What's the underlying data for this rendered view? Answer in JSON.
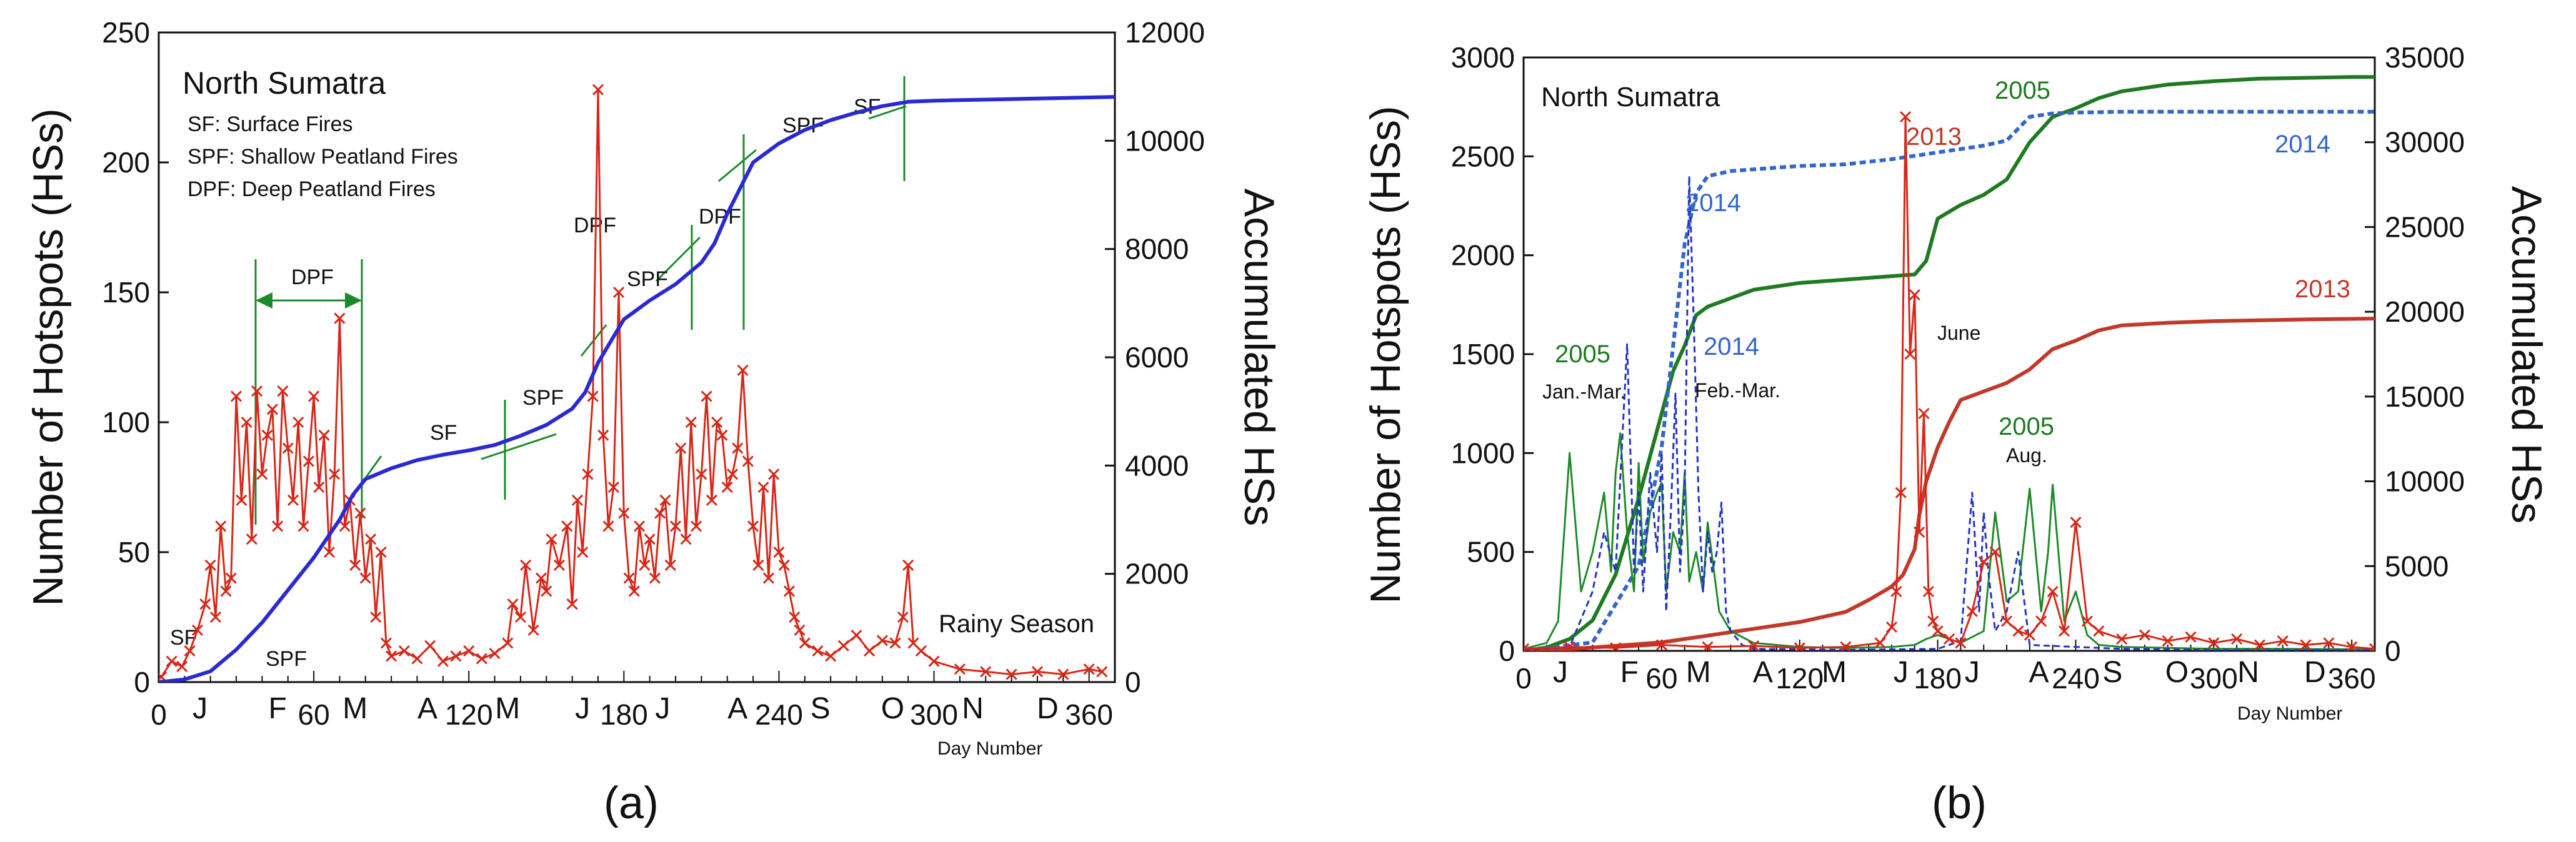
{
  "chart_data": [
    {
      "panel": "(a)",
      "type": "line",
      "title": "North Sumatra",
      "xlabel": "Day Number",
      "ylabel": "Number of Hotspots (HSs)",
      "y2label": "Accumulated HSs",
      "xlim": [
        0,
        370
      ],
      "ylim": [
        0,
        250
      ],
      "y2lim": [
        0,
        12000
      ],
      "xticks": [
        0,
        60,
        120,
        180,
        240,
        300,
        360
      ],
      "yticks": [
        0,
        50,
        100,
        150,
        200,
        250
      ],
      "y2ticks": [
        0,
        2000,
        4000,
        6000,
        8000,
        10000,
        12000
      ],
      "month_labels": [
        {
          "label": "J",
          "day": 16
        },
        {
          "label": "F",
          "day": 46
        },
        {
          "label": "M",
          "day": 76
        },
        {
          "label": "A",
          "day": 104
        },
        {
          "label": "M",
          "day": 135
        },
        {
          "label": "J",
          "day": 164
        },
        {
          "label": "J",
          "day": 195
        },
        {
          "label": "A",
          "day": 224
        },
        {
          "label": "S",
          "day": 256
        },
        {
          "label": "O",
          "day": 284
        },
        {
          "label": "N",
          "day": 315
        },
        {
          "label": "D",
          "day": 344
        }
      ],
      "legend": [
        "SF:  Surface Fires",
        "SPF: Shallow Peatland Fires",
        "DPF: Deep Peatland Fires"
      ],
      "annotations": [
        "Rainy Season",
        "DPF",
        "SF",
        "SPF",
        "SF",
        "SPF",
        "DPF",
        "SPF",
        "DPF",
        "SPF",
        "SF"
      ],
      "series": [
        {
          "name": "Daily hotspots",
          "axis": "left",
          "color": "#d62718",
          "marker": "x",
          "x": [
            1,
            5,
            9,
            12,
            15,
            18,
            20,
            22,
            24,
            26,
            28,
            30,
            32,
            34,
            36,
            38,
            40,
            42,
            44,
            46,
            48,
            50,
            52,
            54,
            56,
            58,
            60,
            62,
            64,
            66,
            68,
            70,
            72,
            74,
            76,
            78,
            80,
            82,
            84,
            86,
            88,
            90,
            95,
            100,
            105,
            110,
            115,
            120,
            125,
            130,
            135,
            137,
            140,
            142,
            145,
            148,
            150,
            152,
            155,
            158,
            160,
            162,
            164,
            166,
            168,
            170,
            172,
            174,
            176,
            178,
            180,
            182,
            184,
            186,
            188,
            190,
            192,
            194,
            196,
            198,
            200,
            202,
            204,
            206,
            208,
            210,
            212,
            214,
            216,
            218,
            220,
            222,
            224,
            226,
            228,
            230,
            232,
            234,
            236,
            238,
            240,
            242,
            244,
            246,
            248,
            250,
            255,
            260,
            265,
            270,
            275,
            280,
            285,
            288,
            290,
            292,
            295,
            300,
            310,
            320,
            330,
            340,
            350,
            360,
            365
          ],
          "values": [
            2,
            8,
            6,
            12,
            20,
            30,
            45,
            25,
            60,
            35,
            40,
            110,
            70,
            100,
            55,
            112,
            80,
            95,
            105,
            60,
            112,
            90,
            70,
            100,
            60,
            85,
            110,
            75,
            95,
            50,
            80,
            140,
            60,
            70,
            45,
            65,
            40,
            55,
            25,
            50,
            15,
            10,
            12,
            9,
            14,
            8,
            10,
            12,
            9,
            11,
            15,
            30,
            25,
            45,
            20,
            40,
            35,
            55,
            45,
            60,
            30,
            70,
            50,
            80,
            110,
            228,
            95,
            60,
            75,
            150,
            65,
            40,
            35,
            60,
            45,
            55,
            40,
            65,
            70,
            45,
            60,
            90,
            55,
            100,
            60,
            80,
            110,
            70,
            100,
            95,
            75,
            80,
            90,
            120,
            85,
            60,
            45,
            75,
            40,
            80,
            50,
            45,
            35,
            25,
            20,
            15,
            12,
            10,
            14,
            18,
            12,
            16,
            15,
            25,
            45,
            15,
            12,
            8,
            5,
            4,
            3,
            4,
            3,
            5,
            4
          ]
        },
        {
          "name": "Accumulated HSs",
          "axis": "right",
          "color": "#2a2ad0",
          "x": [
            0,
            10,
            20,
            30,
            40,
            50,
            60,
            70,
            75,
            80,
            90,
            100,
            110,
            120,
            130,
            140,
            150,
            160,
            165,
            170,
            175,
            180,
            190,
            200,
            210,
            215,
            220,
            230,
            240,
            250,
            260,
            270,
            280,
            290,
            300,
            310,
            320,
            330,
            340,
            350,
            360,
            370
          ],
          "values": [
            0,
            50,
            200,
            600,
            1100,
            1700,
            2300,
            3000,
            3450,
            3750,
            3950,
            4100,
            4200,
            4280,
            4380,
            4550,
            4750,
            5050,
            5350,
            5900,
            6300,
            6700,
            7050,
            7350,
            7750,
            8100,
            8650,
            9600,
            9950,
            10200,
            10380,
            10520,
            10640,
            10720,
            10740,
            10750,
            10760,
            10770,
            10780,
            10790,
            10800,
            10810
          ]
        }
      ]
    },
    {
      "panel": "(b)",
      "type": "line",
      "title": "North Sumatra",
      "xlabel": "Day Number",
      "ylabel": "Number of Hotspots (HSs)",
      "y2label": "Accumulated HSs",
      "xlim": [
        0,
        370
      ],
      "ylim": [
        0,
        3000
      ],
      "y2lim": [
        0,
        35000
      ],
      "xticks": [
        0,
        60,
        120,
        180,
        240,
        300,
        360
      ],
      "yticks": [
        0,
        500,
        1000,
        1500,
        2000,
        2500,
        3000
      ],
      "y2ticks": [
        0,
        5000,
        10000,
        15000,
        20000,
        25000,
        30000,
        35000
      ],
      "month_labels": [
        {
          "label": "J",
          "day": 16
        },
        {
          "label": "F",
          "day": 46
        },
        {
          "label": "M",
          "day": 76
        },
        {
          "label": "A",
          "day": 104
        },
        {
          "label": "M",
          "day": 135
        },
        {
          "label": "J",
          "day": 164
        },
        {
          "label": "J",
          "day": 195
        },
        {
          "label": "A",
          "day": 224
        },
        {
          "label": "S",
          "day": 256
        },
        {
          "label": "O",
          "day": 284
        },
        {
          "label": "N",
          "day": 315
        },
        {
          "label": "D",
          "day": 344
        }
      ],
      "annotations": [
        "2013",
        "2005",
        "2014",
        "2014",
        "2013",
        "2005",
        "Jan.-Mar.",
        "2014",
        "Feb.-Mar.",
        "June",
        "2005",
        "Aug."
      ],
      "series": [
        {
          "name": "2005 accumulated",
          "axis": "right",
          "color": "#1f7a22",
          "x": [
            0,
            10,
            20,
            30,
            40,
            50,
            60,
            65,
            70,
            75,
            80,
            90,
            100,
            120,
            140,
            160,
            170,
            175,
            180,
            190,
            200,
            210,
            220,
            230,
            240,
            250,
            260,
            280,
            300,
            320,
            340,
            360,
            370
          ],
          "values": [
            0,
            200,
            700,
            1800,
            4500,
            9000,
            14000,
            16500,
            18000,
            19800,
            20300,
            20800,
            21300,
            21700,
            21900,
            22100,
            22200,
            23000,
            25500,
            26300,
            26900,
            27800,
            30000,
            31500,
            32000,
            32600,
            33000,
            33400,
            33600,
            33750,
            33800,
            33850,
            33850
          ]
        },
        {
          "name": "2014 accumulated",
          "axis": "right",
          "color": "#3366cc",
          "dashed": true,
          "x": [
            0,
            30,
            50,
            60,
            65,
            70,
            75,
            80,
            90,
            100,
            120,
            140,
            160,
            170,
            180,
            190,
            200,
            210,
            220,
            230,
            240,
            260,
            300,
            340,
            370
          ],
          "values": [
            0,
            500,
            5000,
            12000,
            18000,
            24000,
            27000,
            28000,
            28300,
            28400,
            28600,
            28700,
            29000,
            29200,
            29400,
            29600,
            29800,
            30100,
            31500,
            31700,
            31750,
            31800,
            31800,
            31800,
            31800
          ]
        },
        {
          "name": "2013 accumulated",
          "axis": "right",
          "color": "#c0392b",
          "x": [
            0,
            20,
            40,
            60,
            80,
            100,
            120,
            140,
            150,
            160,
            165,
            170,
            172,
            175,
            180,
            185,
            190,
            200,
            210,
            220,
            230,
            240,
            250,
            260,
            280,
            300,
            320,
            340,
            360,
            370
          ],
          "values": [
            0,
            100,
            300,
            500,
            900,
            1300,
            1700,
            2300,
            3000,
            3800,
            4500,
            6000,
            8000,
            10000,
            12000,
            13500,
            14800,
            15300,
            15800,
            16600,
            17800,
            18300,
            18900,
            19200,
            19350,
            19450,
            19500,
            19550,
            19580,
            19600
          ]
        },
        {
          "name": "2005 daily",
          "axis": "left",
          "color": "#1f8a2a",
          "x": [
            0,
            10,
            15,
            20,
            25,
            30,
            35,
            38,
            40,
            42,
            45,
            48,
            50,
            52,
            55,
            58,
            60,
            62,
            65,
            68,
            70,
            72,
            75,
            78,
            80,
            85,
            90,
            100,
            120,
            140,
            160,
            170,
            175,
            180,
            185,
            190,
            200,
            205,
            210,
            215,
            220,
            225,
            228,
            230,
            235,
            240,
            245,
            250,
            260,
            280,
            300,
            330,
            360,
            370
          ],
          "values": [
            10,
            40,
            150,
            1000,
            300,
            500,
            800,
            400,
            900,
            1100,
            600,
            300,
            950,
            450,
            700,
            800,
            850,
            300,
            600,
            500,
            900,
            350,
            500,
            300,
            650,
            200,
            100,
            40,
            20,
            15,
            20,
            30,
            60,
            80,
            60,
            40,
            100,
            700,
            250,
            300,
            820,
            200,
            500,
            840,
            150,
            300,
            80,
            30,
            20,
            15,
            10,
            10,
            8,
            5
          ]
        },
        {
          "name": "2014 daily",
          "axis": "left",
          "color": "#2433c4",
          "dashed": true,
          "x": [
            0,
            20,
            30,
            35,
            40,
            45,
            48,
            50,
            52,
            55,
            58,
            60,
            62,
            64,
            66,
            68,
            70,
            72,
            74,
            76,
            78,
            80,
            82,
            84,
            86,
            88,
            90,
            95,
            100,
            140,
            180,
            190,
            195,
            198,
            200,
            202,
            205,
            210,
            215,
            220,
            260,
            300,
            360,
            370
          ],
          "values": [
            5,
            20,
            300,
            600,
            400,
            1550,
            400,
            800,
            300,
            900,
            500,
            1000,
            200,
            700,
            1300,
            400,
            800,
            2400,
            1650,
            800,
            300,
            600,
            400,
            500,
            750,
            200,
            100,
            30,
            10,
            5,
            10,
            50,
            800,
            200,
            700,
            400,
            100,
            200,
            500,
            30,
            10,
            5,
            5,
            5
          ]
        },
        {
          "name": "2013 daily",
          "axis": "left",
          "color": "#d62718",
          "marker": "x",
          "x": [
            0,
            20,
            40,
            60,
            80,
            100,
            120,
            140,
            155,
            160,
            162,
            164,
            166,
            168,
            170,
            172,
            174,
            176,
            178,
            180,
            185,
            190,
            195,
            200,
            205,
            210,
            215,
            220,
            225,
            230,
            235,
            240,
            245,
            250,
            260,
            270,
            280,
            290,
            300,
            310,
            320,
            330,
            340,
            350,
            360,
            370
          ],
          "values": [
            10,
            20,
            15,
            30,
            20,
            25,
            15,
            20,
            40,
            120,
            300,
            800,
            2700,
            1500,
            1800,
            600,
            1200,
            300,
            150,
            100,
            60,
            40,
            200,
            450,
            500,
            150,
            100,
            80,
            150,
            300,
            100,
            650,
            150,
            100,
            60,
            80,
            50,
            70,
            40,
            60,
            30,
            50,
            30,
            40,
            20,
            10
          ]
        }
      ]
    }
  ]
}
